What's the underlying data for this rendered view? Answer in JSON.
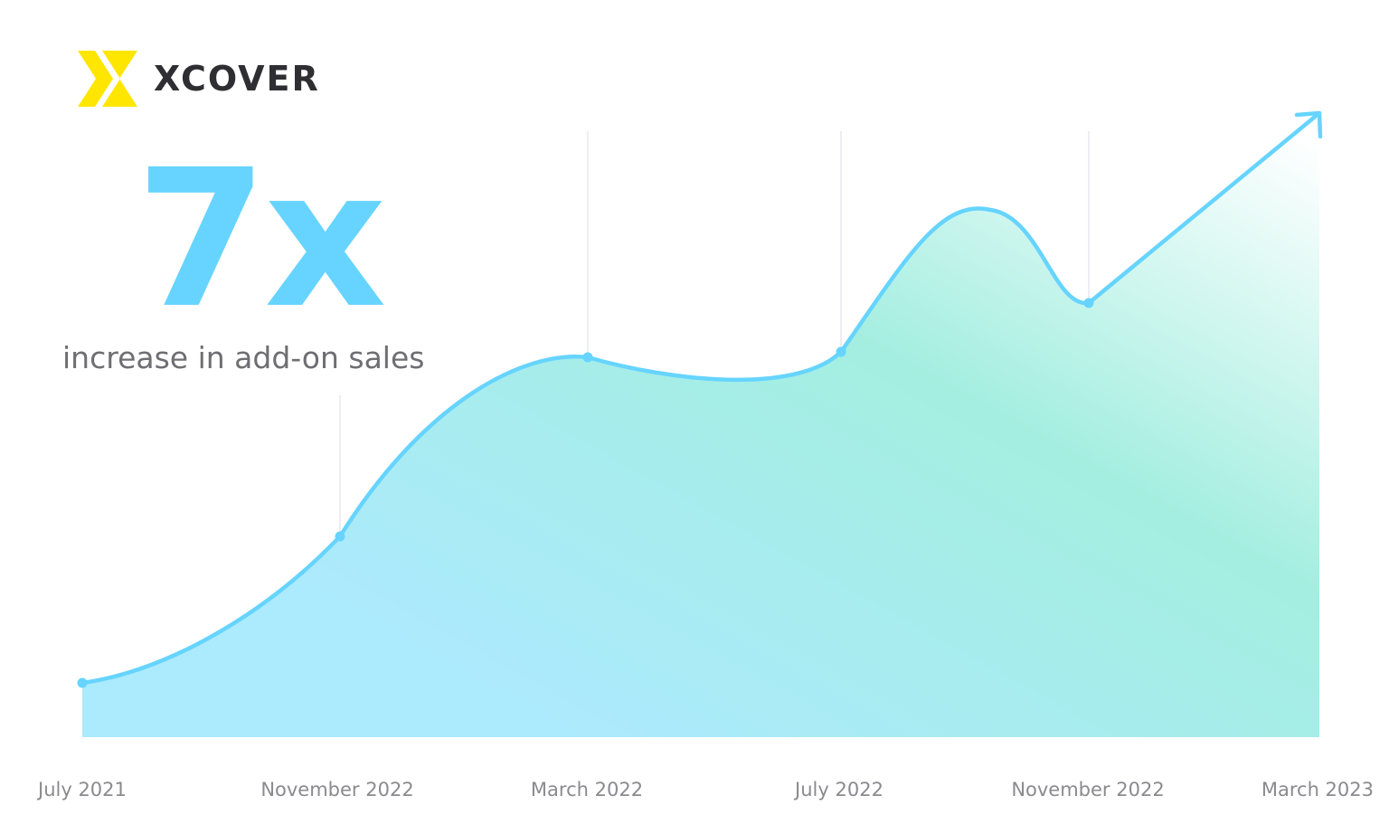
{
  "brand": {
    "name": "XCOVER",
    "icon": "xcover-x-logo-icon",
    "accent": "#FFE600"
  },
  "headline": {
    "value": "7x",
    "caption": "increase in add-on sales"
  },
  "colors": {
    "line": "#66D4FF",
    "fill_start": "#ACEAFD",
    "fill_mid": "#A3EEE0",
    "fill_end": "#FFFFFF",
    "text": "#6E6E73",
    "headline": "#66D4FF"
  },
  "chart_data": {
    "type": "area",
    "title": "",
    "xlabel": "",
    "ylabel": "",
    "categories": [
      "July 2021",
      "November 2022",
      "March 2022",
      "July 2022",
      "November 2022",
      "March 2023"
    ],
    "series": [
      {
        "values": [
          1.0,
          3.7,
          7.0,
          7.1,
          8.0,
          11.5
        ]
      }
    ],
    "ylim": [
      0,
      12
    ],
    "grid": "vertical",
    "legend": "none",
    "annotations": [
      "arrow at end of line pointing up-right"
    ]
  }
}
